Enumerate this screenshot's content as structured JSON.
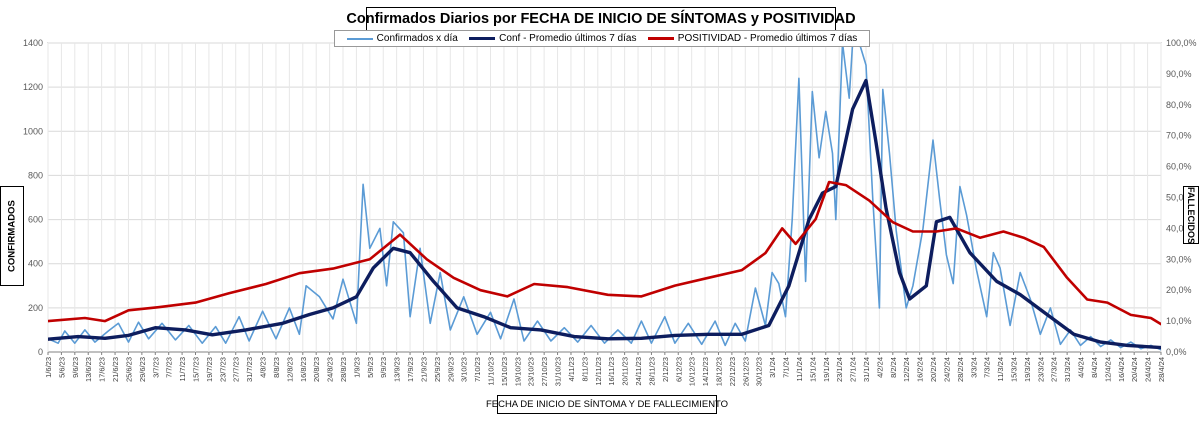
{
  "chart_data": {
    "type": "line",
    "title": "Confirmados  Diarios  por FECHA DE INICIO DE SÍNTOMAS y POSITIVIDAD",
    "ylabel": "CONFIRMADOS",
    "ylabel_right": "FALLECIDOS",
    "xlabel": "FECHA DE INICIO DE SÍNTOMA  Y DE FALLECIMIENTO",
    "ylim": [
      0,
      1400
    ],
    "y_ticks": [
      "0",
      "200",
      "400",
      "600",
      "800",
      "1000",
      "1200",
      "1400"
    ],
    "ylim_right": [
      0,
      1
    ],
    "y2_ticks": [
      "0,0%",
      "10,0%",
      "20,0%",
      "30,0%",
      "40,0%",
      "50,0%",
      "60,0%",
      "70,0%",
      "80,0%",
      "90,0%",
      "100,0%"
    ],
    "grid": true,
    "legend": "top-center",
    "x_start": "2023-06-01",
    "x_end": "2024-04-28",
    "x_ticks": [
      "1/6/23",
      "5/6/23",
      "9/6/23",
      "13/6/23",
      "17/6/23",
      "21/6/23",
      "25/6/23",
      "29/6/23",
      "3/7/23",
      "7/7/23",
      "11/7/23",
      "15/7/23",
      "19/7/23",
      "23/7/23",
      "27/7/23",
      "31/7/23",
      "4/8/23",
      "8/8/23",
      "12/8/23",
      "16/8/23",
      "20/8/23",
      "24/8/23",
      "28/8/23",
      "1/9/23",
      "5/9/23",
      "9/9/23",
      "13/9/23",
      "17/9/23",
      "21/9/23",
      "25/9/23",
      "29/9/23",
      "3/10/23",
      "7/10/23",
      "11/10/23",
      "15/10/23",
      "19/10/23",
      "23/10/23",
      "27/10/23",
      "31/10/23",
      "4/11/23",
      "8/11/23",
      "12/11/23",
      "16/11/23",
      "20/11/23",
      "24/11/23",
      "28/11/23",
      "2/12/23",
      "6/12/23",
      "10/12/23",
      "14/12/23",
      "18/12/23",
      "22/12/23",
      "26/12/23",
      "30/12/23",
      "3/1/24",
      "7/1/24",
      "11/1/24",
      "15/1/24",
      "19/1/24",
      "23/1/24",
      "27/1/24",
      "31/1/24",
      "4/2/24",
      "8/2/24",
      "12/2/24",
      "16/2/24",
      "20/2/24",
      "24/2/24",
      "28/2/24",
      "3/3/24",
      "7/3/24",
      "11/3/24",
      "15/3/24",
      "19/3/24",
      "23/3/24",
      "27/3/24",
      "31/3/24",
      "4/4/24",
      "8/4/24",
      "12/4/24",
      "16/4/24",
      "20/4/24",
      "24/4/24",
      "28/4/24"
    ],
    "series": [
      {
        "name": "Confirmados x día",
        "color": "#5b9bd5",
        "axis": "left",
        "points": [
          [
            "2023-06-01",
            60
          ],
          [
            "2023-06-04",
            40
          ],
          [
            "2023-06-06",
            95
          ],
          [
            "2023-06-09",
            40
          ],
          [
            "2023-06-12",
            100
          ],
          [
            "2023-06-15",
            45
          ],
          [
            "2023-06-19",
            95
          ],
          [
            "2023-06-22",
            130
          ],
          [
            "2023-06-25",
            45
          ],
          [
            "2023-06-28",
            135
          ],
          [
            "2023-07-01",
            60
          ],
          [
            "2023-07-05",
            130
          ],
          [
            "2023-07-09",
            55
          ],
          [
            "2023-07-13",
            120
          ],
          [
            "2023-07-17",
            40
          ],
          [
            "2023-07-21",
            115
          ],
          [
            "2023-07-24",
            40
          ],
          [
            "2023-07-28",
            160
          ],
          [
            "2023-07-31",
            50
          ],
          [
            "2023-08-04",
            185
          ],
          [
            "2023-08-08",
            60
          ],
          [
            "2023-08-12",
            200
          ],
          [
            "2023-08-15",
            80
          ],
          [
            "2023-08-17",
            300
          ],
          [
            "2023-08-21",
            250
          ],
          [
            "2023-08-25",
            150
          ],
          [
            "2023-08-28",
            330
          ],
          [
            "2023-09-01",
            130
          ],
          [
            "2023-09-03",
            760
          ],
          [
            "2023-09-05",
            470
          ],
          [
            "2023-09-08",
            560
          ],
          [
            "2023-09-10",
            300
          ],
          [
            "2023-09-12",
            590
          ],
          [
            "2023-09-15",
            540
          ],
          [
            "2023-09-17",
            160
          ],
          [
            "2023-09-20",
            470
          ],
          [
            "2023-09-23",
            130
          ],
          [
            "2023-09-26",
            360
          ],
          [
            "2023-09-29",
            100
          ],
          [
            "2023-10-03",
            250
          ],
          [
            "2023-10-07",
            80
          ],
          [
            "2023-10-11",
            180
          ],
          [
            "2023-10-14",
            60
          ],
          [
            "2023-10-18",
            240
          ],
          [
            "2023-10-21",
            50
          ],
          [
            "2023-10-25",
            140
          ],
          [
            "2023-10-29",
            50
          ],
          [
            "2023-11-02",
            110
          ],
          [
            "2023-11-06",
            45
          ],
          [
            "2023-11-10",
            120
          ],
          [
            "2023-11-14",
            40
          ],
          [
            "2023-11-18",
            100
          ],
          [
            "2023-11-22",
            40
          ],
          [
            "2023-11-25",
            140
          ],
          [
            "2023-11-28",
            40
          ],
          [
            "2023-12-02",
            160
          ],
          [
            "2023-12-05",
            40
          ],
          [
            "2023-12-09",
            130
          ],
          [
            "2023-12-13",
            35
          ],
          [
            "2023-12-17",
            140
          ],
          [
            "2023-12-20",
            30
          ],
          [
            "2023-12-23",
            130
          ],
          [
            "2023-12-26",
            50
          ],
          [
            "2023-12-29",
            290
          ],
          [
            "2024-01-01",
            120
          ],
          [
            "2024-01-03",
            360
          ],
          [
            "2024-01-05",
            310
          ],
          [
            "2024-01-07",
            160
          ],
          [
            "2024-01-09",
            600
          ],
          [
            "2024-01-11",
            1240
          ],
          [
            "2024-01-13",
            320
          ],
          [
            "2024-01-15",
            1180
          ],
          [
            "2024-01-17",
            880
          ],
          [
            "2024-01-19",
            1090
          ],
          [
            "2024-01-21",
            900
          ],
          [
            "2024-01-22",
            600
          ],
          [
            "2024-01-24",
            1400
          ],
          [
            "2024-01-26",
            1150
          ],
          [
            "2024-01-27",
            1400
          ],
          [
            "2024-01-29",
            1400
          ],
          [
            "2024-01-31",
            1300
          ],
          [
            "2024-02-02",
            700
          ],
          [
            "2024-02-04",
            200
          ],
          [
            "2024-02-05",
            1190
          ],
          [
            "2024-02-07",
            900
          ],
          [
            "2024-02-09",
            550
          ],
          [
            "2024-02-12",
            200
          ],
          [
            "2024-02-14",
            300
          ],
          [
            "2024-02-17",
            560
          ],
          [
            "2024-02-20",
            960
          ],
          [
            "2024-02-22",
            690
          ],
          [
            "2024-02-24",
            440
          ],
          [
            "2024-02-26",
            310
          ],
          [
            "2024-02-28",
            750
          ],
          [
            "2024-03-01",
            620
          ],
          [
            "2024-03-04",
            370
          ],
          [
            "2024-03-07",
            160
          ],
          [
            "2024-03-09",
            450
          ],
          [
            "2024-03-11",
            380
          ],
          [
            "2024-03-14",
            120
          ],
          [
            "2024-03-17",
            360
          ],
          [
            "2024-03-20",
            240
          ],
          [
            "2024-03-23",
            80
          ],
          [
            "2024-03-26",
            200
          ],
          [
            "2024-03-29",
            35
          ],
          [
            "2024-04-01",
            100
          ],
          [
            "2024-04-04",
            30
          ],
          [
            "2024-04-07",
            70
          ],
          [
            "2024-04-10",
            25
          ],
          [
            "2024-04-13",
            55
          ],
          [
            "2024-04-16",
            20
          ],
          [
            "2024-04-19",
            45
          ],
          [
            "2024-04-22",
            15
          ],
          [
            "2024-04-25",
            30
          ],
          [
            "2024-04-28",
            10
          ]
        ]
      },
      {
        "name": "Conf - Promedio últimos 7 días",
        "color": "#0d1d5e",
        "axis": "left",
        "points": [
          [
            "2023-06-01",
            58
          ],
          [
            "2023-06-10",
            70
          ],
          [
            "2023-06-18",
            62
          ],
          [
            "2023-06-25",
            75
          ],
          [
            "2023-07-03",
            110
          ],
          [
            "2023-07-12",
            100
          ],
          [
            "2023-07-20",
            78
          ],
          [
            "2023-07-30",
            100
          ],
          [
            "2023-08-10",
            130
          ],
          [
            "2023-08-18",
            170
          ],
          [
            "2023-08-25",
            200
          ],
          [
            "2023-09-01",
            250
          ],
          [
            "2023-09-06",
            380
          ],
          [
            "2023-09-12",
            470
          ],
          [
            "2023-09-17",
            450
          ],
          [
            "2023-09-24",
            320
          ],
          [
            "2023-10-01",
            200
          ],
          [
            "2023-10-09",
            160
          ],
          [
            "2023-10-17",
            110
          ],
          [
            "2023-10-26",
            100
          ],
          [
            "2023-11-05",
            70
          ],
          [
            "2023-11-15",
            60
          ],
          [
            "2023-11-25",
            62
          ],
          [
            "2023-12-05",
            75
          ],
          [
            "2023-12-15",
            80
          ],
          [
            "2023-12-25",
            80
          ],
          [
            "2024-01-02",
            120
          ],
          [
            "2024-01-08",
            300
          ],
          [
            "2024-01-14",
            600
          ],
          [
            "2024-01-18",
            720
          ],
          [
            "2024-01-22",
            750
          ],
          [
            "2024-01-27",
            1100
          ],
          [
            "2024-01-31",
            1230
          ],
          [
            "2024-02-03",
            950
          ],
          [
            "2024-02-06",
            650
          ],
          [
            "2024-02-10",
            360
          ],
          [
            "2024-02-13",
            240
          ],
          [
            "2024-02-18",
            300
          ],
          [
            "2024-02-21",
            590
          ],
          [
            "2024-02-25",
            610
          ],
          [
            "2024-03-02",
            450
          ],
          [
            "2024-03-10",
            320
          ],
          [
            "2024-03-17",
            260
          ],
          [
            "2024-03-25",
            170
          ],
          [
            "2024-04-02",
            80
          ],
          [
            "2024-04-10",
            45
          ],
          [
            "2024-04-18",
            30
          ],
          [
            "2024-04-28",
            20
          ]
        ]
      },
      {
        "name": "POSITIVIDAD - Promedio últimos 7 días",
        "color": "#c00000",
        "axis": "right",
        "points": [
          [
            "2023-06-01",
            0.1
          ],
          [
            "2023-06-12",
            0.11
          ],
          [
            "2023-06-18",
            0.1
          ],
          [
            "2023-06-25",
            0.135
          ],
          [
            "2023-07-04",
            0.145
          ],
          [
            "2023-07-15",
            0.16
          ],
          [
            "2023-07-25",
            0.19
          ],
          [
            "2023-08-05",
            0.22
          ],
          [
            "2023-08-15",
            0.255
          ],
          [
            "2023-08-25",
            0.27
          ],
          [
            "2023-09-05",
            0.3
          ],
          [
            "2023-09-14",
            0.38
          ],
          [
            "2023-09-22",
            0.3
          ],
          [
            "2023-09-30",
            0.24
          ],
          [
            "2023-10-08",
            0.2
          ],
          [
            "2023-10-16",
            0.18
          ],
          [
            "2023-10-24",
            0.22
          ],
          [
            "2023-11-03",
            0.21
          ],
          [
            "2023-11-15",
            0.185
          ],
          [
            "2023-11-25",
            0.18
          ],
          [
            "2023-12-05",
            0.215
          ],
          [
            "2023-12-15",
            0.24
          ],
          [
            "2023-12-25",
            0.265
          ],
          [
            "2024-01-01",
            0.32
          ],
          [
            "2024-01-06",
            0.4
          ],
          [
            "2024-01-10",
            0.35
          ],
          [
            "2024-01-16",
            0.43
          ],
          [
            "2024-01-20",
            0.55
          ],
          [
            "2024-01-25",
            0.54
          ],
          [
            "2024-02-01",
            0.49
          ],
          [
            "2024-02-08",
            0.42
          ],
          [
            "2024-02-14",
            0.39
          ],
          [
            "2024-02-21",
            0.39
          ],
          [
            "2024-02-27",
            0.4
          ],
          [
            "2024-03-05",
            0.37
          ],
          [
            "2024-03-12",
            0.39
          ],
          [
            "2024-03-18",
            0.37
          ],
          [
            "2024-03-24",
            0.34
          ],
          [
            "2024-03-31",
            0.24
          ],
          [
            "2024-04-06",
            0.17
          ],
          [
            "2024-04-12",
            0.16
          ],
          [
            "2024-04-19",
            0.12
          ],
          [
            "2024-04-25",
            0.11
          ],
          [
            "2024-04-28",
            0.09
          ]
        ]
      }
    ]
  }
}
